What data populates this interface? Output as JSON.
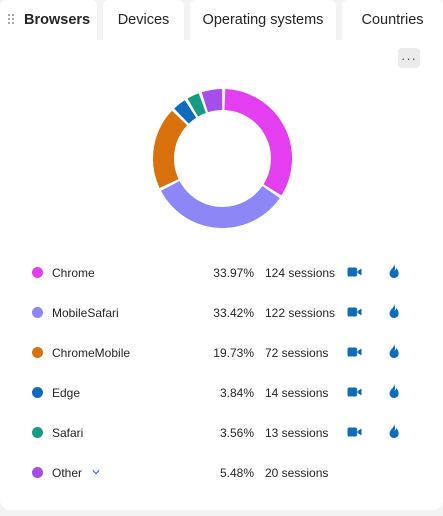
{
  "tabs": [
    {
      "label": "Browsers",
      "active": true
    },
    {
      "label": "Devices",
      "active": false
    },
    {
      "label": "Operating systems",
      "active": false
    },
    {
      "label": "Countries",
      "active": false
    }
  ],
  "more_button_label": "···",
  "icons": {
    "grip": "drag-grip-icon",
    "more": "more-options-icon",
    "recordings": "video-camera-icon",
    "heatmap": "flame-icon",
    "expand": "chevron-down-icon"
  },
  "colors": {
    "accent": "#0f6cbd",
    "Chrome": "#e33ef0",
    "MobileSafari": "#8c86f7",
    "ChromeMobile": "#d8700b",
    "Edge": "#0f6cbd",
    "Safari": "#159c82",
    "Other": "#a64ee9"
  },
  "browsers": [
    {
      "name": "Chrome",
      "percent": "33.97%",
      "sessions": "124 sessions",
      "value": 33.97,
      "has_actions": true
    },
    {
      "name": "MobileSafari",
      "percent": "33.42%",
      "sessions": "122 sessions",
      "value": 33.42,
      "has_actions": true
    },
    {
      "name": "ChromeMobile",
      "percent": "19.73%",
      "sessions": "72 sessions",
      "value": 19.73,
      "has_actions": true
    },
    {
      "name": "Edge",
      "percent": "3.84%",
      "sessions": "14 sessions",
      "value": 3.84,
      "has_actions": true
    },
    {
      "name": "Safari",
      "percent": "3.56%",
      "sessions": "13 sessions",
      "value": 3.56,
      "has_actions": true
    },
    {
      "name": "Other",
      "percent": "5.48%",
      "sessions": "20 sessions",
      "value": 5.48,
      "has_actions": false,
      "expandable": true
    }
  ]
}
